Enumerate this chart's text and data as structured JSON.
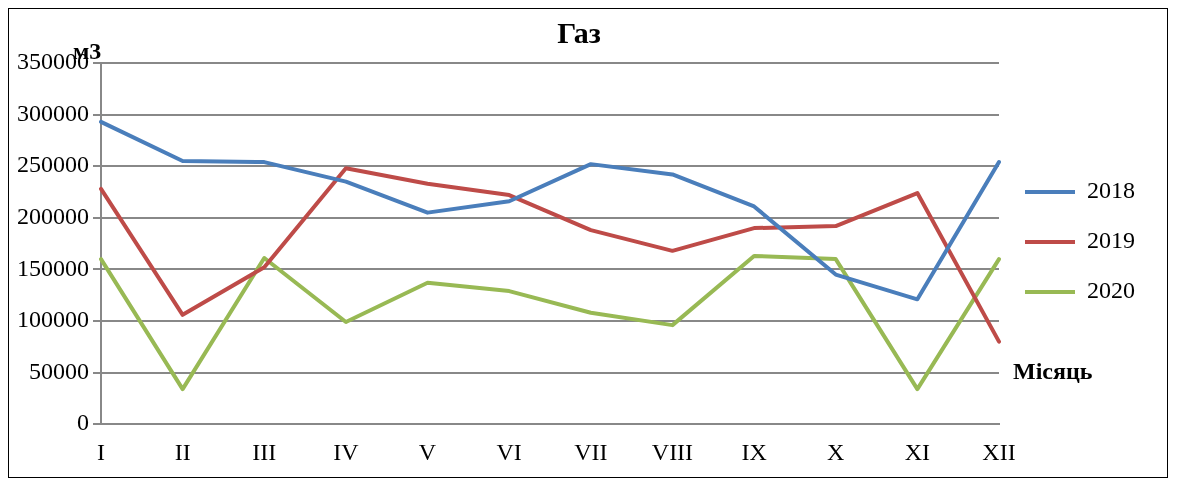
{
  "chart_data": {
    "type": "line",
    "title": "Газ",
    "ylabel": "м3",
    "xlabel": "Місяць",
    "categories": [
      "I",
      "II",
      "III",
      "IV",
      "V",
      "VI",
      "VII",
      "VIII",
      "IX",
      "X",
      "XI",
      "XII"
    ],
    "series": [
      {
        "name": "2018",
        "color": "#4a7ebb",
        "values": [
          293000,
          255000,
          254000,
          235000,
          205000,
          216000,
          252000,
          242000,
          211000,
          145000,
          121000,
          254000
        ]
      },
      {
        "name": "2019",
        "color": "#be4b48",
        "values": [
          228000,
          106000,
          152000,
          248000,
          233000,
          222000,
          188000,
          168000,
          190000,
          192000,
          224000,
          80000
        ]
      },
      {
        "name": "2020",
        "color": "#98b954",
        "values": [
          160000,
          34000,
          161000,
          99000,
          137000,
          129000,
          108000,
          96000,
          163000,
          160000,
          34000,
          160000
        ]
      }
    ],
    "ylim": [
      0,
      350000
    ],
    "yticks": [
      0,
      50000,
      100000,
      150000,
      200000,
      250000,
      300000,
      350000
    ],
    "grid": "y",
    "legend": "right",
    "marker": "none",
    "line_style": "solid"
  }
}
